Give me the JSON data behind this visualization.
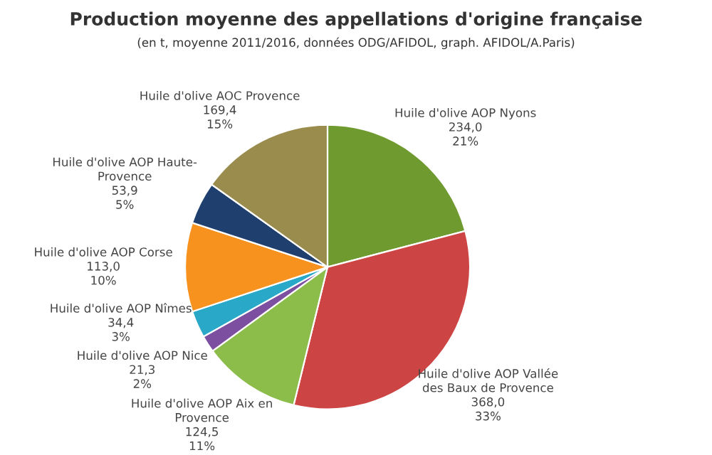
{
  "chart_data": {
    "type": "pie",
    "title": "Production moyenne des appellations d'origine française",
    "subtitle": "(en t, moyenne 2011/2016, données ODG/AFIDOL, graph. AFIDOL/A.Paris)",
    "categories": [
      "Huile d'olive AOP Nyons",
      "Huile d'olive AOP Vallée\ndes Baux de Provence",
      "Huile d'olive AOP Aix en\nProvence",
      "Huile d'olive AOP Nice",
      "Huile d'olive AOP Nîmes",
      "Huile d'olive AOP Corse",
      "Huile d'olive AOP Haute-\nProvence",
      "Huile d'olive AOC Provence"
    ],
    "values": [
      234.0,
      368.0,
      124.5,
      21.3,
      34.4,
      113.0,
      53.9,
      169.4
    ],
    "value_labels": [
      "234,0\n21%",
      "368,0\n33%",
      "124,5\n11%",
      "21,3\n2%",
      "34,4\n3%",
      "113,0\n10%",
      "53,9\n5%",
      "169,4\n15%"
    ],
    "colors": [
      "#6f9a2f",
      "#cc4444",
      "#8cbd4a",
      "#7d4fa0",
      "#2aa8c8",
      "#f7921e",
      "#1f3f6e",
      "#998c4c"
    ],
    "legend": false
  }
}
